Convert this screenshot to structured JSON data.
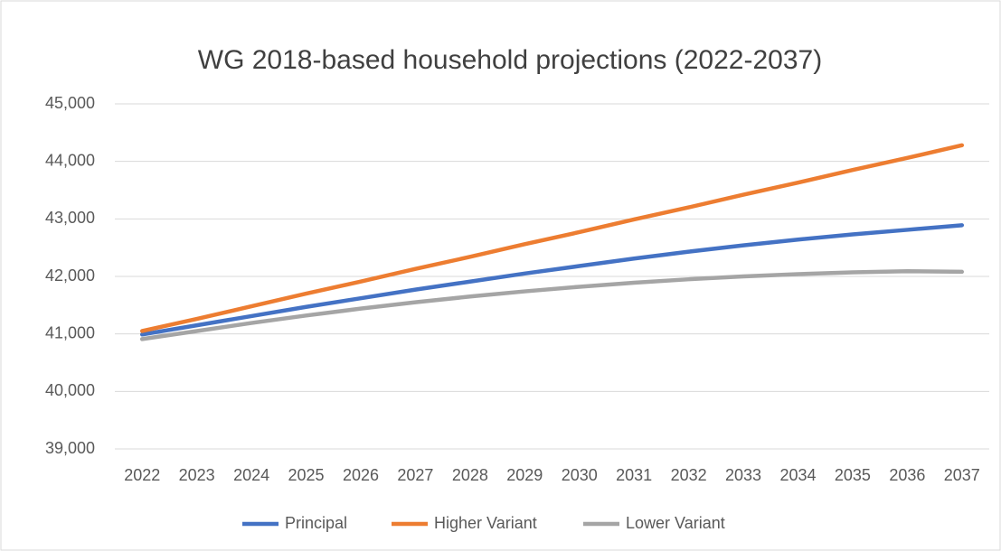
{
  "chart_data": {
    "type": "line",
    "title": "WG 2018-based household projections (2022-2037)",
    "categories": [
      "2022",
      "2023",
      "2024",
      "2025",
      "2026",
      "2027",
      "2028",
      "2029",
      "2030",
      "2031",
      "2032",
      "2033",
      "2034",
      "2035",
      "2036",
      "2037"
    ],
    "series": [
      {
        "name": "Principal",
        "color": "#4472c4",
        "values": [
          40990,
          41150,
          41310,
          41470,
          41620,
          41770,
          41910,
          42050,
          42180,
          42310,
          42430,
          42540,
          42640,
          42730,
          42810,
          42890
        ]
      },
      {
        "name": "Higher Variant",
        "color": "#ed7d31",
        "values": [
          41050,
          41260,
          41480,
          41700,
          41910,
          42130,
          42340,
          42560,
          42770,
          42990,
          43200,
          43420,
          43630,
          43850,
          44060,
          44280
        ]
      },
      {
        "name": "Lower Variant",
        "color": "#a5a5a5",
        "values": [
          40910,
          41050,
          41190,
          41320,
          41440,
          41550,
          41650,
          41740,
          41820,
          41890,
          41950,
          42000,
          42040,
          42070,
          42090,
          42080
        ]
      }
    ],
    "ylim": [
      39000,
      45000
    ],
    "yticks": [
      {
        "value": 39000,
        "label": "39,000"
      },
      {
        "value": 40000,
        "label": "40,000"
      },
      {
        "value": 41000,
        "label": "41,000"
      },
      {
        "value": 42000,
        "label": "42,000"
      },
      {
        "value": 43000,
        "label": "43,000"
      },
      {
        "value": 44000,
        "label": "44,000"
      },
      {
        "value": 45000,
        "label": "45,000"
      }
    ],
    "grid": true,
    "legend": "bottom"
  }
}
